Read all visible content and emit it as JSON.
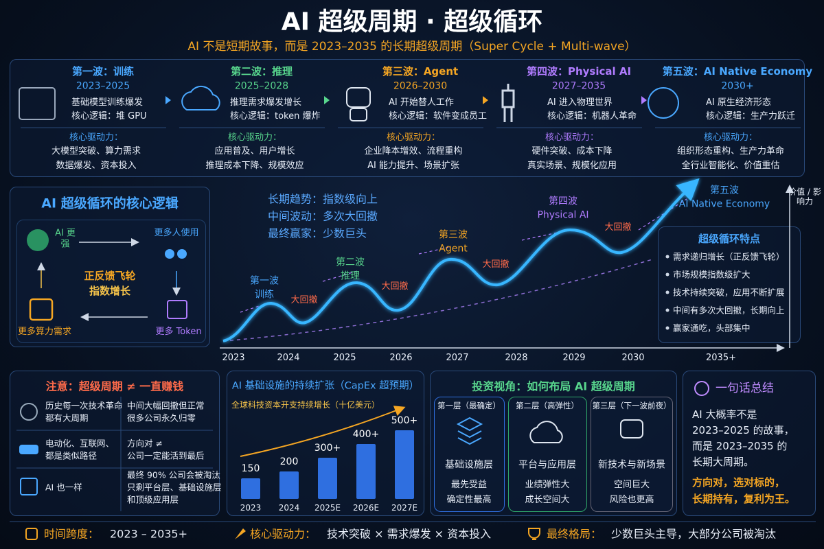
{
  "header": {
    "title": "AI 超级周期 · 超级循环",
    "subtitle": "AI 不是短期故事，而是 2023–2035 的长期超级周期（Super Cycle + Multi-wave）"
  },
  "waves": [
    {
      "name": "第一波：训练",
      "years": "2023–2025",
      "lines": [
        "基础模型训练爆发",
        "核心逻辑：堆 GPU"
      ],
      "drivers_title": "核心驱动力：",
      "drivers": [
        "大模型突破、算力需求",
        "数据爆发、资本投入"
      ]
    },
    {
      "name": "第二波：推理",
      "years": "2025–2028",
      "lines": [
        "推理需求爆发增长",
        "核心逻辑：token 爆炸"
      ],
      "drivers_title": "核心驱动力：",
      "drivers": [
        "应用普及、用户增长",
        "推理成本下降、规模效应"
      ]
    },
    {
      "name": "第三波：Agent",
      "years": "2026–2030",
      "lines": [
        "AI 开始替人工作",
        "核心逻辑：软件变成员工"
      ],
      "drivers_title": "核心驱动力：",
      "drivers": [
        "企业降本增效、流程重构",
        "AI 能力提升、场景扩张"
      ]
    },
    {
      "name": "第四波：Physical AI",
      "years": "2027–2035",
      "lines": [
        "AI 进入物理世界",
        "核心逻辑：机器人革命"
      ],
      "drivers_title": "核心驱动力：",
      "drivers": [
        "硬件突破、成本下降",
        "真实场景、规模化应用"
      ]
    },
    {
      "name": "第五波：AI Native Economy",
      "years": "2030+",
      "lines": [
        "AI 原生经济形态",
        "核心逻辑：生产力跃迁"
      ],
      "drivers_title": "核心驱动力：",
      "drivers": [
        "组织形态重构、生产力革命",
        "全行业智能化、价值重估"
      ]
    }
  ],
  "flywheel": {
    "title": "AI 超级循环的核心逻辑",
    "nodes": [
      "AI 更强",
      "更多人使用",
      "更多 Token",
      "更多算力需求"
    ],
    "center": [
      "正反馈飞轮",
      "指数增长"
    ]
  },
  "cycle": {
    "notes": [
      "长期趋势：指数级向上",
      "中间波动：多次大回撤",
      "最终赢家：少数巨头"
    ],
    "axis_label": "价值 / 影响力",
    "years": [
      "2023",
      "2024",
      "2025",
      "2026",
      "2027",
      "2028",
      "2029",
      "2030",
      "2035+"
    ],
    "waves": [
      {
        "name": "第一波",
        "label": "训练"
      },
      {
        "name": "第二波",
        "label": "推理"
      },
      {
        "name": "第三波",
        "label": "Agent"
      },
      {
        "name": "第四波",
        "label": "Physical AI"
      },
      {
        "name": "第五波",
        "label": "AI Native Economy"
      }
    ],
    "drawdowns": [
      "大回撤",
      "大回撤",
      "大回撤",
      "大回撤"
    ],
    "features_title": "超级循环特点",
    "features": [
      "需求递归增长（正反馈飞轮）",
      "市场规模指数级扩大",
      "技术持续突破，应用不断扩展",
      "中间有多次大回撤，长期向上",
      "赢家通吃，头部集中"
    ]
  },
  "warning": {
    "title": "注意：超级周期 ≠ 一直赚钱",
    "rows": [
      {
        "left": [
          "历史每一次技术革命",
          "都有大周期"
        ],
        "right": [
          "中间大幅回撤但正常",
          "很多公司永久归零"
        ]
      },
      {
        "left": [
          "电动化、互联网、",
          "都是类似路径"
        ],
        "right": [
          "方向对 ≠",
          "公司一定能活到最后"
        ]
      },
      {
        "left": [
          "AI 也一样"
        ],
        "right": [
          "最终 90% 公司会被淘汰",
          "只剩平台层、基础设施层",
          "和顶级应用层"
        ]
      }
    ]
  },
  "capex": {
    "title": "AI 基础设施的持续扩张（CapEx 超预期）",
    "subtitle": "全球科技资本开支持续增长（十亿美元）",
    "categories": [
      "2023",
      "2024",
      "2025E",
      "2026E",
      "2027E"
    ],
    "values": [
      150,
      200,
      300,
      400,
      500
    ],
    "value_labels": [
      "150",
      "200",
      "300+",
      "400+",
      "500+"
    ],
    "color": "#2f6fe0"
  },
  "invest": {
    "title": "投资视角：如何布局 AI 超级周期",
    "layers": [
      {
        "header": "第一层（最确定）",
        "name": "基础设施层",
        "lines": [
          "最先受益",
          "确定性最高"
        ]
      },
      {
        "header": "第二层（高弹性）",
        "name": "平台与应用层",
        "lines": [
          "业绩弹性大",
          "成长空间大"
        ]
      },
      {
        "header": "第三层（下一波前夜）",
        "name": "新技术与新场景",
        "lines": [
          "空间巨大",
          "风险也更高"
        ]
      }
    ]
  },
  "summary": {
    "title": "一句话总结",
    "lines": [
      "AI 大概率不是",
      "2023–2025 的故事，",
      "而是 2023–2035 的",
      "长期大周期。"
    ],
    "highlight": [
      "方向对，选对标的，",
      "长期持有，复利为王。"
    ]
  },
  "footer": [
    {
      "label": "时间跨度：",
      "text": "2023 – 2035+"
    },
    {
      "label": "核心驱动力：",
      "text": "技术突破 × 需求爆发 × 资本投入"
    },
    {
      "label": "最终格局：",
      "text": "少数巨头主导，大部分公司被淘汰"
    }
  ]
}
